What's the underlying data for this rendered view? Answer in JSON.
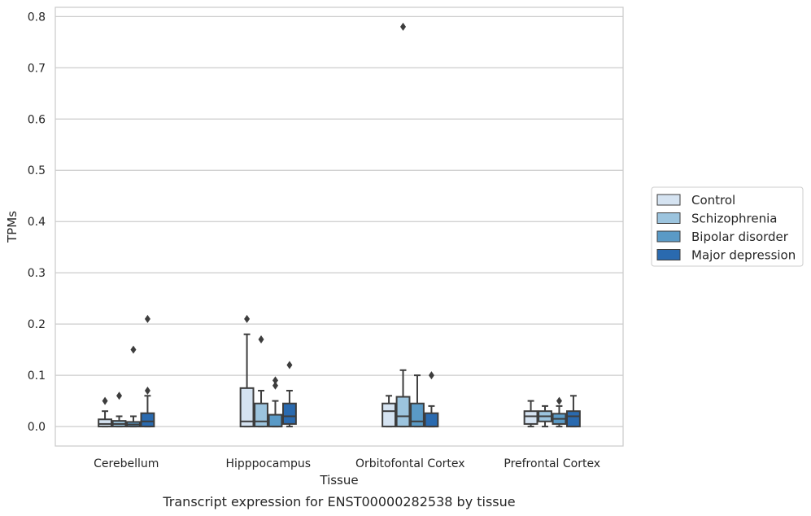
{
  "chart_data": {
    "type": "box",
    "caption": "Transcript expression for ENST00000282538 by tissue",
    "xlabel": "Tissue",
    "ylabel": "TPMs",
    "ylim": [
      -0.038,
      0.818
    ],
    "yticks": [
      "0.0",
      "0.1",
      "0.2",
      "0.3",
      "0.4",
      "0.5",
      "0.6",
      "0.7",
      "0.8"
    ],
    "ytick_values": [
      0.0,
      0.1,
      0.2,
      0.3,
      0.4,
      0.5,
      0.6,
      0.7,
      0.8
    ],
    "grid": "horizontal",
    "legend_position": "right",
    "categories": [
      "Cerebellum",
      "Hipppocampus",
      "Orbitofontal Cortex",
      "Prefrontal Cortex"
    ],
    "series": [
      {
        "name": "Control",
        "color": "#d5e3f1",
        "boxes": [
          {
            "q1": 0.0,
            "median": 0.005,
            "q3": 0.014,
            "whisker_low": 0.0,
            "whisker_high": 0.03,
            "outliers": [
              0.05
            ]
          },
          {
            "q1": 0.0,
            "median": 0.01,
            "q3": 0.075,
            "whisker_low": 0.0,
            "whisker_high": 0.18,
            "outliers": [
              0.21
            ]
          },
          {
            "q1": 0.0,
            "median": 0.03,
            "q3": 0.045,
            "whisker_low": 0.0,
            "whisker_high": 0.06,
            "outliers": []
          },
          {
            "q1": 0.005,
            "median": 0.02,
            "q3": 0.03,
            "whisker_low": 0.0,
            "whisker_high": 0.05,
            "outliers": []
          }
        ]
      },
      {
        "name": "Schizophrenia",
        "color": "#9cc4de",
        "boxes": [
          {
            "q1": 0.0,
            "median": 0.005,
            "q3": 0.011,
            "whisker_low": 0.0,
            "whisker_high": 0.02,
            "outliers": [
              0.06
            ]
          },
          {
            "q1": 0.0,
            "median": 0.01,
            "q3": 0.045,
            "whisker_low": 0.0,
            "whisker_high": 0.07,
            "outliers": [
              0.17
            ]
          },
          {
            "q1": 0.0,
            "median": 0.02,
            "q3": 0.058,
            "whisker_low": 0.0,
            "whisker_high": 0.11,
            "outliers": [
              0.78
            ]
          },
          {
            "q1": 0.01,
            "median": 0.02,
            "q3": 0.03,
            "whisker_low": 0.0,
            "whisker_high": 0.04,
            "outliers": []
          }
        ]
      },
      {
        "name": "Bipolar disorder",
        "color": "#5a9ac6",
        "boxes": [
          {
            "q1": 0.0,
            "median": 0.004,
            "q3": 0.009,
            "whisker_low": 0.0,
            "whisker_high": 0.02,
            "outliers": [
              0.15
            ]
          },
          {
            "q1": 0.0,
            "median": 0.0,
            "q3": 0.023,
            "whisker_low": 0.0,
            "whisker_high": 0.05,
            "outliers": [
              0.08,
              0.09
            ]
          },
          {
            "q1": 0.0,
            "median": 0.01,
            "q3": 0.045,
            "whisker_low": 0.0,
            "whisker_high": 0.1,
            "outliers": []
          },
          {
            "q1": 0.005,
            "median": 0.015,
            "q3": 0.025,
            "whisker_low": 0.0,
            "whisker_high": 0.04,
            "outliers": [
              0.05
            ]
          }
        ]
      },
      {
        "name": "Major depression",
        "color": "#2a6aaf",
        "boxes": [
          {
            "q1": 0.0,
            "median": 0.01,
            "q3": 0.026,
            "whisker_low": 0.0,
            "whisker_high": 0.06,
            "outliers": [
              0.07,
              0.21
            ]
          },
          {
            "q1": 0.005,
            "median": 0.02,
            "q3": 0.045,
            "whisker_low": 0.0,
            "whisker_high": 0.07,
            "outliers": [
              0.12
            ]
          },
          {
            "q1": 0.0,
            "median": 0.0,
            "q3": 0.026,
            "whisker_low": 0.0,
            "whisker_high": 0.04,
            "outliers": [
              0.1
            ]
          },
          {
            "q1": 0.0,
            "median": 0.02,
            "q3": 0.03,
            "whisker_low": 0.0,
            "whisker_high": 0.06,
            "outliers": []
          }
        ]
      }
    ]
  }
}
